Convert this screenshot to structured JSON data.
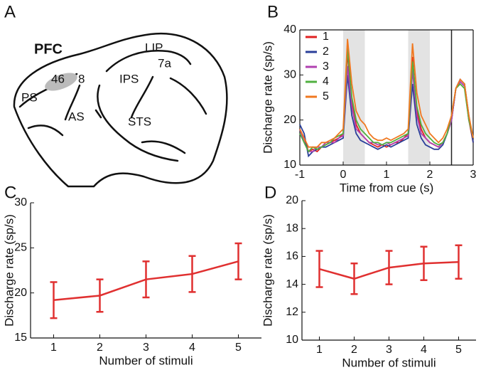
{
  "diagram": {
    "panel": "A",
    "labels": [
      {
        "text": "PFC",
        "bold": true
      },
      {
        "text": "46"
      },
      {
        "text": "8"
      },
      {
        "text": "PS"
      },
      {
        "text": "AS"
      },
      {
        "text": "LIP"
      },
      {
        "text": "7a"
      },
      {
        "text": "IPS"
      },
      {
        "text": "STS"
      }
    ]
  },
  "chart_data": [
    {
      "type": "line",
      "panel": "B",
      "xlabel": "Time from cue (s)",
      "ylabel": "Discharge rate (sp/s)",
      "xlim": [
        -1,
        3
      ],
      "ylim": [
        10,
        40
      ],
      "xticks": [
        -1,
        0,
        1,
        2,
        3
      ],
      "yticks": [
        10,
        20,
        30,
        40
      ],
      "shaded_spans": [
        [
          0,
          0.5
        ],
        [
          1.5,
          2
        ]
      ],
      "vline": 2.5,
      "legend": "upper left",
      "x": [
        -1,
        -0.9,
        -0.8,
        -0.7,
        -0.6,
        -0.5,
        -0.4,
        -0.3,
        -0.2,
        -0.1,
        0,
        0.1,
        0.2,
        0.3,
        0.4,
        0.5,
        0.6,
        0.7,
        0.8,
        0.9,
        1,
        1.1,
        1.2,
        1.3,
        1.4,
        1.5,
        1.6,
        1.7,
        1.8,
        1.9,
        2,
        2.1,
        2.2,
        2.3,
        2.4,
        2.5,
        2.6,
        2.7,
        2.8,
        2.9,
        3
      ],
      "series": [
        {
          "name": "1",
          "color": "#e02020",
          "values": [
            18,
            16,
            13,
            13.5,
            13,
            14,
            14.5,
            15,
            15.5,
            16,
            17,
            35,
            24,
            19,
            17,
            16,
            15,
            14.5,
            14,
            14.5,
            14,
            14.5,
            15,
            15,
            16,
            17,
            34,
            22,
            18,
            16,
            15,
            14.5,
            14,
            15,
            17,
            20,
            27,
            29,
            28,
            20,
            15
          ]
        },
        {
          "name": "2",
          "color": "#2a3f9a",
          "values": [
            19,
            17,
            12,
            13,
            13.5,
            14,
            14,
            14.5,
            15,
            15.5,
            16,
            30,
            21,
            17,
            15.5,
            15,
            14.5,
            14,
            13.5,
            14,
            14.5,
            14,
            14.5,
            15,
            15.5,
            16,
            28,
            19,
            16,
            14.5,
            14,
            13.5,
            13.5,
            14.5,
            17,
            20,
            27,
            29,
            28,
            21,
            15
          ]
        },
        {
          "name": "3",
          "color": "#b040b0",
          "values": [
            18,
            15,
            13,
            13,
            14,
            14,
            15,
            15,
            15,
            16,
            16.5,
            32,
            23,
            18,
            17,
            16,
            15,
            15,
            14.5,
            14.5,
            15,
            14.5,
            15,
            15.5,
            16,
            16.5,
            31,
            21,
            17,
            16,
            15,
            14.5,
            14,
            15,
            17,
            20,
            27,
            28.5,
            27.5,
            20,
            16
          ]
        },
        {
          "name": "4",
          "color": "#50b040",
          "values": [
            17,
            15,
            13,
            14,
            13.5,
            14,
            14.5,
            15,
            16,
            16.5,
            17,
            36,
            25,
            20,
            18,
            17,
            16,
            15,
            15,
            14.5,
            15,
            15,
            15.5,
            16,
            16.5,
            17,
            33,
            23,
            19,
            17,
            16,
            15,
            14.5,
            15,
            17,
            21,
            27,
            28,
            27,
            20,
            16
          ]
        },
        {
          "name": "5",
          "color": "#f07820",
          "values": [
            18,
            16,
            14,
            14,
            14,
            15,
            15,
            15.5,
            16,
            17,
            18,
            38,
            28,
            22,
            20,
            19,
            17,
            16,
            15.5,
            15.5,
            16,
            15.5,
            16,
            16.5,
            17,
            18,
            37,
            26,
            21,
            19,
            17,
            16,
            15,
            16,
            18,
            21,
            27,
            29,
            28,
            21,
            16
          ]
        }
      ]
    },
    {
      "type": "errorbar",
      "panel": "C",
      "xlabel": "Number of stimuli",
      "ylabel": "Discharge rate (sp/s)",
      "xlim": [
        0.5,
        5.5
      ],
      "ylim": [
        15,
        30
      ],
      "xticks": [
        1,
        2,
        3,
        4,
        5
      ],
      "yticks": [
        15,
        20,
        25,
        30
      ],
      "color": "#e03030",
      "x": [
        1,
        2,
        3,
        4,
        5
      ],
      "values": [
        19.2,
        19.7,
        21.5,
        22.1,
        23.5
      ],
      "errors": [
        2,
        1.8,
        2,
        2,
        2
      ]
    },
    {
      "type": "errorbar",
      "panel": "D",
      "xlabel": "Number of stimuli",
      "ylabel": "Discharge rate (sp/s)",
      "xlim": [
        0.5,
        5.5
      ],
      "ylim": [
        10,
        20
      ],
      "xticks": [
        1,
        2,
        3,
        4,
        5
      ],
      "yticks": [
        10,
        12,
        14,
        16,
        18,
        20
      ],
      "color": "#e03030",
      "x": [
        1,
        2,
        3,
        4,
        5
      ],
      "values": [
        15.1,
        14.4,
        15.2,
        15.5,
        15.6
      ],
      "errors": [
        1.3,
        1.1,
        1.2,
        1.2,
        1.2
      ]
    }
  ]
}
